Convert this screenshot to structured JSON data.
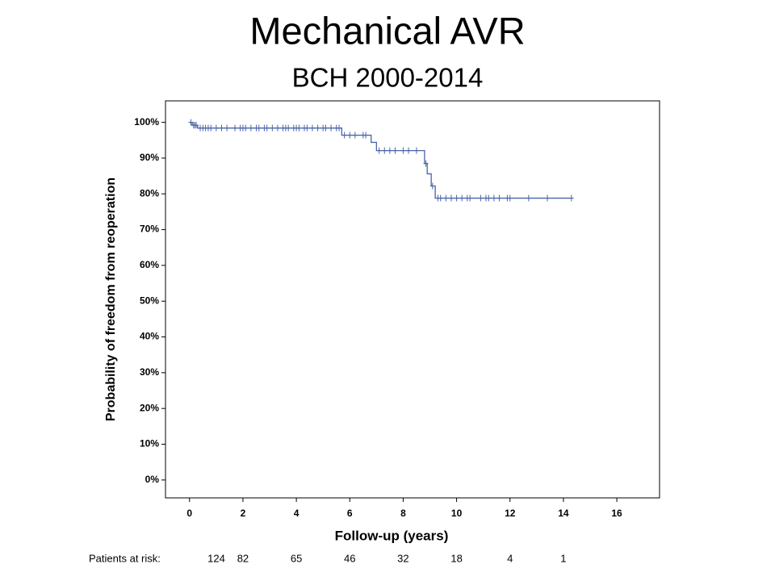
{
  "chart_data": {
    "type": "step",
    "title": "Mechanical AVR",
    "subtitle": "BCH 2000-2014",
    "x_label": "Follow-up (years)",
    "y_label": "Probability of freedom from reoperation",
    "color": "#4a64a8",
    "xlim": [
      -0.9,
      17.6
    ],
    "ylim": [
      -5,
      106
    ],
    "xticks": [
      0,
      2,
      4,
      6,
      8,
      10,
      12,
      14,
      16
    ],
    "yticks": [
      {
        "value": 0,
        "label": "0%"
      },
      {
        "value": 10,
        "label": "10%"
      },
      {
        "value": 20,
        "label": "20%"
      },
      {
        "value": 30,
        "label": "30%"
      },
      {
        "value": 40,
        "label": "40%"
      },
      {
        "value": 50,
        "label": "50%"
      },
      {
        "value": 60,
        "label": "60%"
      },
      {
        "value": 70,
        "label": "70%"
      },
      {
        "value": 80,
        "label": "80%"
      },
      {
        "value": 90,
        "label": "90%"
      },
      {
        "value": 100,
        "label": "100%"
      }
    ],
    "x": [
      0,
      0.1,
      0.3,
      5.7,
      6.8,
      7.0,
      8.8,
      8.9,
      9.05,
      9.2,
      14.3
    ],
    "values": [
      100,
      99.2,
      98.4,
      96.4,
      94.4,
      92.1,
      88.5,
      85.6,
      82.2,
      78.8,
      78.8
    ],
    "censored": {
      "x": [
        0.05,
        0.15,
        0.2,
        0.25,
        0.4,
        0.5,
        0.6,
        0.7,
        0.8,
        1.0,
        1.2,
        1.4,
        1.7,
        1.9,
        2.0,
        2.1,
        2.3,
        2.5,
        2.6,
        2.8,
        2.9,
        3.1,
        3.3,
        3.5,
        3.6,
        3.7,
        3.9,
        4.0,
        4.1,
        4.3,
        4.4,
        4.6,
        4.8,
        5.0,
        5.1,
        5.3,
        5.5,
        5.6,
        5.8,
        6.0,
        6.2,
        6.5,
        6.6,
        7.1,
        7.3,
        7.5,
        7.7,
        8.0,
        8.2,
        8.5,
        8.85,
        9.1,
        9.3,
        9.4,
        9.6,
        9.8,
        10.0,
        10.2,
        10.4,
        10.5,
        10.9,
        11.1,
        11.2,
        11.4,
        11.6,
        11.9,
        12.0,
        12.7,
        13.4,
        14.3
      ],
      "values": [
        100,
        99.2,
        99.2,
        99.2,
        98.4,
        98.4,
        98.4,
        98.4,
        98.4,
        98.4,
        98.4,
        98.4,
        98.4,
        98.4,
        98.4,
        98.4,
        98.4,
        98.4,
        98.4,
        98.4,
        98.4,
        98.4,
        98.4,
        98.4,
        98.4,
        98.4,
        98.4,
        98.4,
        98.4,
        98.4,
        98.4,
        98.4,
        98.4,
        98.4,
        98.4,
        98.4,
        98.4,
        98.4,
        96.4,
        96.4,
        96.4,
        96.4,
        96.4,
        92.1,
        92.1,
        92.1,
        92.1,
        92.1,
        92.1,
        92.1,
        88.5,
        82.2,
        78.8,
        78.8,
        78.8,
        78.8,
        78.8,
        78.8,
        78.8,
        78.8,
        78.8,
        78.8,
        78.8,
        78.8,
        78.8,
        78.8,
        78.8,
        78.8,
        78.8,
        78.8
      ]
    },
    "risk_label": "Patients at risk:",
    "risk_values": [
      124,
      82,
      65,
      46,
      32,
      18,
      4,
      1
    ]
  }
}
